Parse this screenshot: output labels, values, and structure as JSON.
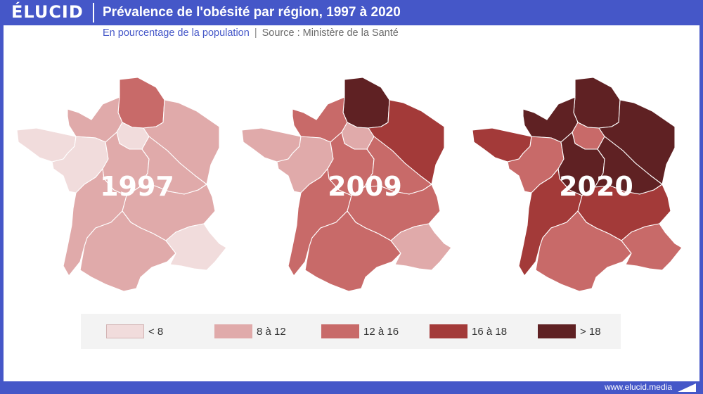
{
  "header": {
    "logo": "ÉLUCID",
    "title": "Prévalence de l'obésité par région, 1997 à 2020",
    "subtitle": "En pourcentage de la population",
    "separator": "|",
    "source": "Source : Ministère de la Santé"
  },
  "footer": {
    "url": "www.elucid.media"
  },
  "colors": {
    "brand": "#4557c8",
    "classes": [
      "#f1dcdc",
      "#e0aaaa",
      "#c86a69",
      "#a33a39",
      "#5f2123"
    ]
  },
  "legend": [
    {
      "label": "< 8",
      "class": 0
    },
    {
      "label": "8 à 12",
      "class": 1
    },
    {
      "label": "12 à 16",
      "class": 2
    },
    {
      "label": "16 à 18",
      "class": 3
    },
    {
      "label": "> 18",
      "class": 4
    }
  ],
  "regions": [
    "nord",
    "normandie",
    "idf",
    "est",
    "bretagne",
    "centre-ouest",
    "centre",
    "bourgogne",
    "sud-ouest",
    "centre-est",
    "mediterranee",
    "paca"
  ],
  "maps": [
    {
      "year": "1997",
      "classes": [
        2,
        1,
        0,
        1,
        0,
        0,
        1,
        1,
        1,
        1,
        1,
        0
      ]
    },
    {
      "year": "2009",
      "classes": [
        4,
        2,
        1,
        3,
        1,
        1,
        2,
        2,
        2,
        2,
        2,
        1
      ]
    },
    {
      "year": "2020",
      "classes": [
        4,
        4,
        2,
        4,
        3,
        2,
        4,
        4,
        3,
        3,
        2,
        2
      ]
    }
  ]
}
